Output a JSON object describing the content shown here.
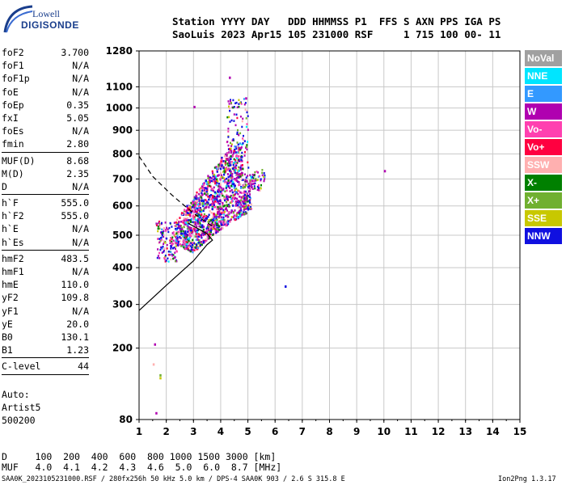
{
  "logo": {
    "brand": "Lowell",
    "product": "DIGISONDE"
  },
  "header": {
    "line1": "Station YYYY DAY   DDD HHMMSS P1  FFS S AXN PPS IGA PS",
    "line2": "SaoLuis 2023 Apr15 105 231000 RSF     1 715 100 00- 11"
  },
  "params": [
    {
      "label": "foF2",
      "value": "3.700"
    },
    {
      "label": "foF1",
      "value": "N/A"
    },
    {
      "label": "foF1p",
      "value": "N/A"
    },
    {
      "label": "foE",
      "value": "N/A"
    },
    {
      "label": "foEp",
      "value": "0.35"
    },
    {
      "label": "fxI",
      "value": "5.05"
    },
    {
      "label": "foEs",
      "value": "N/A"
    },
    {
      "label": "fmin",
      "value": "2.80",
      "sep": true
    },
    {
      "label": "MUF(D)",
      "value": "8.68"
    },
    {
      "label": "M(D)",
      "value": "2.35"
    },
    {
      "label": "D",
      "value": "N/A",
      "sep": true
    },
    {
      "label": "h`F",
      "value": "555.0"
    },
    {
      "label": "h`F2",
      "value": "555.0"
    },
    {
      "label": "h`E",
      "value": "N/A"
    },
    {
      "label": "h`Es",
      "value": "N/A",
      "sep": true
    },
    {
      "label": "hmF2",
      "value": "483.5"
    },
    {
      "label": "hmF1",
      "value": "N/A"
    },
    {
      "label": "hmE",
      "value": "110.0"
    },
    {
      "label": "yF2",
      "value": "109.8"
    },
    {
      "label": "yF1",
      "value": "N/A"
    },
    {
      "label": "yE",
      "value": "20.0"
    },
    {
      "label": "B0",
      "value": "130.1"
    },
    {
      "label": "B1",
      "value": "1.23",
      "sep": true
    },
    {
      "label": "C-level",
      "value": "44",
      "sep": true
    }
  ],
  "autoscale": {
    "line1": "Auto:",
    "line2": "Artist5",
    "line3": "500200"
  },
  "legend": [
    {
      "name": "NoVal",
      "color": "#a0a0a0"
    },
    {
      "name": "NNE",
      "color": "#00e5ff"
    },
    {
      "name": "E",
      "color": "#3399ff"
    },
    {
      "name": "W",
      "color": "#b000b0"
    },
    {
      "name": "Vo-",
      "color": "#ff40b0"
    },
    {
      "name": "Vo+",
      "color": "#ff0040"
    },
    {
      "name": "SSW",
      "color": "#ffb0b0"
    },
    {
      "name": "X-",
      "color": "#008000"
    },
    {
      "name": "X+",
      "color": "#70b030"
    },
    {
      "name": "SSE",
      "color": "#c8c800"
    },
    {
      "name": "NNW",
      "color": "#1010e0"
    }
  ],
  "muf_table": {
    "d_line": "D     100  200  400  600  800 1000 1500 3000 [km]",
    "muf_line": "MUF   4.0  4.1  4.2  4.3  4.6  5.0  6.0  8.7 [MHz]"
  },
  "footer": {
    "left": "SAA0K_2023105231000.RSF / 280fx256h 50 kHz 5.0 km / DPS-4 SAA0K 903 / 2.6 S 315.8 E",
    "right": "Ion2Png 1.3.17"
  },
  "chart_data": {
    "type": "scatter",
    "title": "",
    "xlabel": "",
    "ylabel": "",
    "xlim": [
      1,
      15
    ],
    "ylim": [
      80,
      1280
    ],
    "y_scale": "sqrt",
    "x_ticks": [
      1,
      2,
      3,
      4,
      5,
      6,
      7,
      8,
      9,
      10,
      11,
      12,
      13,
      14,
      15
    ],
    "y_ticks": [
      80,
      200,
      300,
      400,
      500,
      600,
      700,
      800,
      900,
      1000,
      1100,
      1280
    ],
    "grid": true,
    "echo_cluster": {
      "x_range": [
        2.4,
        5.1
      ],
      "y_range": [
        440,
        900
      ],
      "peak_freq": 4.6
    },
    "isolated_points": [
      {
        "x": 4.3,
        "y": 1150,
        "series": "W"
      },
      {
        "x": 10.0,
        "y": 735,
        "series": "W"
      },
      {
        "x": 6.35,
        "y": 350,
        "series": "NNW"
      },
      {
        "x": 1.55,
        "y": 210,
        "series": "W"
      },
      {
        "x": 1.75,
        "y": 150,
        "series": "X+"
      },
      {
        "x": 1.75,
        "y": 145,
        "series": "SSE"
      },
      {
        "x": 1.5,
        "y": 170,
        "series": "SSW"
      },
      {
        "x": 1.6,
        "y": 90,
        "series": "W"
      },
      {
        "x": 3.0,
        "y": 1010,
        "series": "W"
      },
      {
        "x": 4.9,
        "y": 1050,
        "series": "W"
      }
    ],
    "profile_solid": [
      [
        1.0,
        285
      ],
      [
        2.0,
        350
      ],
      [
        3.0,
        420
      ],
      [
        3.5,
        470
      ],
      [
        3.7,
        484
      ],
      [
        3.5,
        505
      ],
      [
        3.0,
        530
      ],
      [
        2.8,
        540
      ]
    ],
    "profile_dashed": [
      [
        1.0,
        790
      ],
      [
        1.5,
        710
      ],
      [
        2.2,
        640
      ],
      [
        2.8,
        590
      ],
      [
        3.2,
        560
      ],
      [
        3.7,
        530
      ]
    ]
  }
}
